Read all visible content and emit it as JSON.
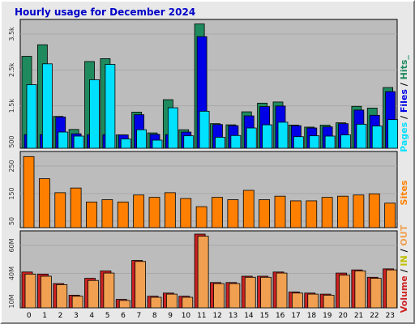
{
  "title": "Hourly usage for December 2024",
  "colors": {
    "hits": "#1f8a5e",
    "files": "#0000e6",
    "pages": "#00e0ff",
    "sites": "#ff8000",
    "volume": "#cc2222",
    "in": "#c0c000",
    "out": "#f0a050",
    "panel_bg": "#bcbcbc"
  },
  "right_labels": {
    "pages": "Pages",
    "files": "Files",
    "hits": "Hits",
    "sites": "Sites",
    "volume": "Volume",
    "in": "IN",
    "out": "OUT"
  },
  "chart_data": [
    {
      "type": "bar",
      "name": "hits-files-pages",
      "categories": [
        "0",
        "1",
        "2",
        "3",
        "4",
        "5",
        "6",
        "7",
        "8",
        "9",
        "10",
        "11",
        "12",
        "13",
        "14",
        "15",
        "16",
        "17",
        "18",
        "19",
        "20",
        "21",
        "22",
        "23"
      ],
      "yticks": [
        "3.5k",
        "2.5k",
        "1.5k",
        "500"
      ],
      "ylim": [
        0,
        4400
      ],
      "series": [
        {
          "name": "Hits",
          "values": [
            3180,
            3580,
            1100,
            650,
            3000,
            3100,
            460,
            1250,
            530,
            1680,
            640,
            4300,
            850,
            810,
            1260,
            1560,
            1600,
            800,
            730,
            800,
            880,
            1450,
            1390,
            2100
          ]
        },
        {
          "name": "Files",
          "values": [
            470,
            470,
            1080,
            500,
            470,
            470,
            460,
            1160,
            480,
            470,
            560,
            3860,
            820,
            780,
            1120,
            1440,
            1460,
            780,
            700,
            740,
            850,
            1320,
            1140,
            1960
          ]
        },
        {
          "name": "Pages",
          "values": [
            2200,
            2920,
            560,
            420,
            2370,
            2900,
            320,
            640,
            280,
            1400,
            430,
            1280,
            380,
            440,
            700,
            810,
            900,
            400,
            430,
            420,
            460,
            830,
            770,
            990
          ]
        }
      ]
    },
    {
      "type": "bar",
      "name": "sites",
      "categories": [
        "0",
        "1",
        "2",
        "3",
        "4",
        "5",
        "6",
        "7",
        "8",
        "9",
        "10",
        "11",
        "12",
        "13",
        "14",
        "15",
        "16",
        "17",
        "18",
        "19",
        "20",
        "21",
        "22",
        "23"
      ],
      "yticks": [
        "250",
        "150",
        "50"
      ],
      "ylim": [
        0,
        320
      ],
      "series": [
        {
          "name": "Sites",
          "values": [
            305,
            210,
            150,
            170,
            110,
            120,
            110,
            140,
            130,
            150,
            125,
            90,
            130,
            120,
            160,
            120,
            135,
            115,
            115,
            130,
            135,
            140,
            145,
            105
          ]
        }
      ]
    },
    {
      "type": "bar",
      "name": "volume",
      "categories": [
        "0",
        "1",
        "2",
        "3",
        "4",
        "5",
        "6",
        "7",
        "8",
        "9",
        "10",
        "11",
        "12",
        "13",
        "14",
        "15",
        "16",
        "17",
        "18",
        "19",
        "20",
        "21",
        "22",
        "23"
      ],
      "yticks": [
        "60M",
        "40M",
        "10M"
      ],
      "ylim": [
        0,
        70
      ],
      "series": [
        {
          "name": "Volume",
          "values": [
            34,
            32,
            23,
            12,
            28,
            35,
            8,
            45,
            11,
            14,
            11,
            70,
            24,
            24,
            30,
            30,
            34,
            15,
            14,
            13,
            33,
            36,
            29,
            37
          ]
        },
        {
          "name": "OUT",
          "values": [
            32,
            30,
            22,
            11,
            26,
            33,
            7,
            44,
            10,
            13,
            10,
            68,
            23,
            23,
            29,
            29,
            33,
            14,
            13,
            12,
            31,
            35,
            28,
            36
          ]
        }
      ]
    }
  ]
}
